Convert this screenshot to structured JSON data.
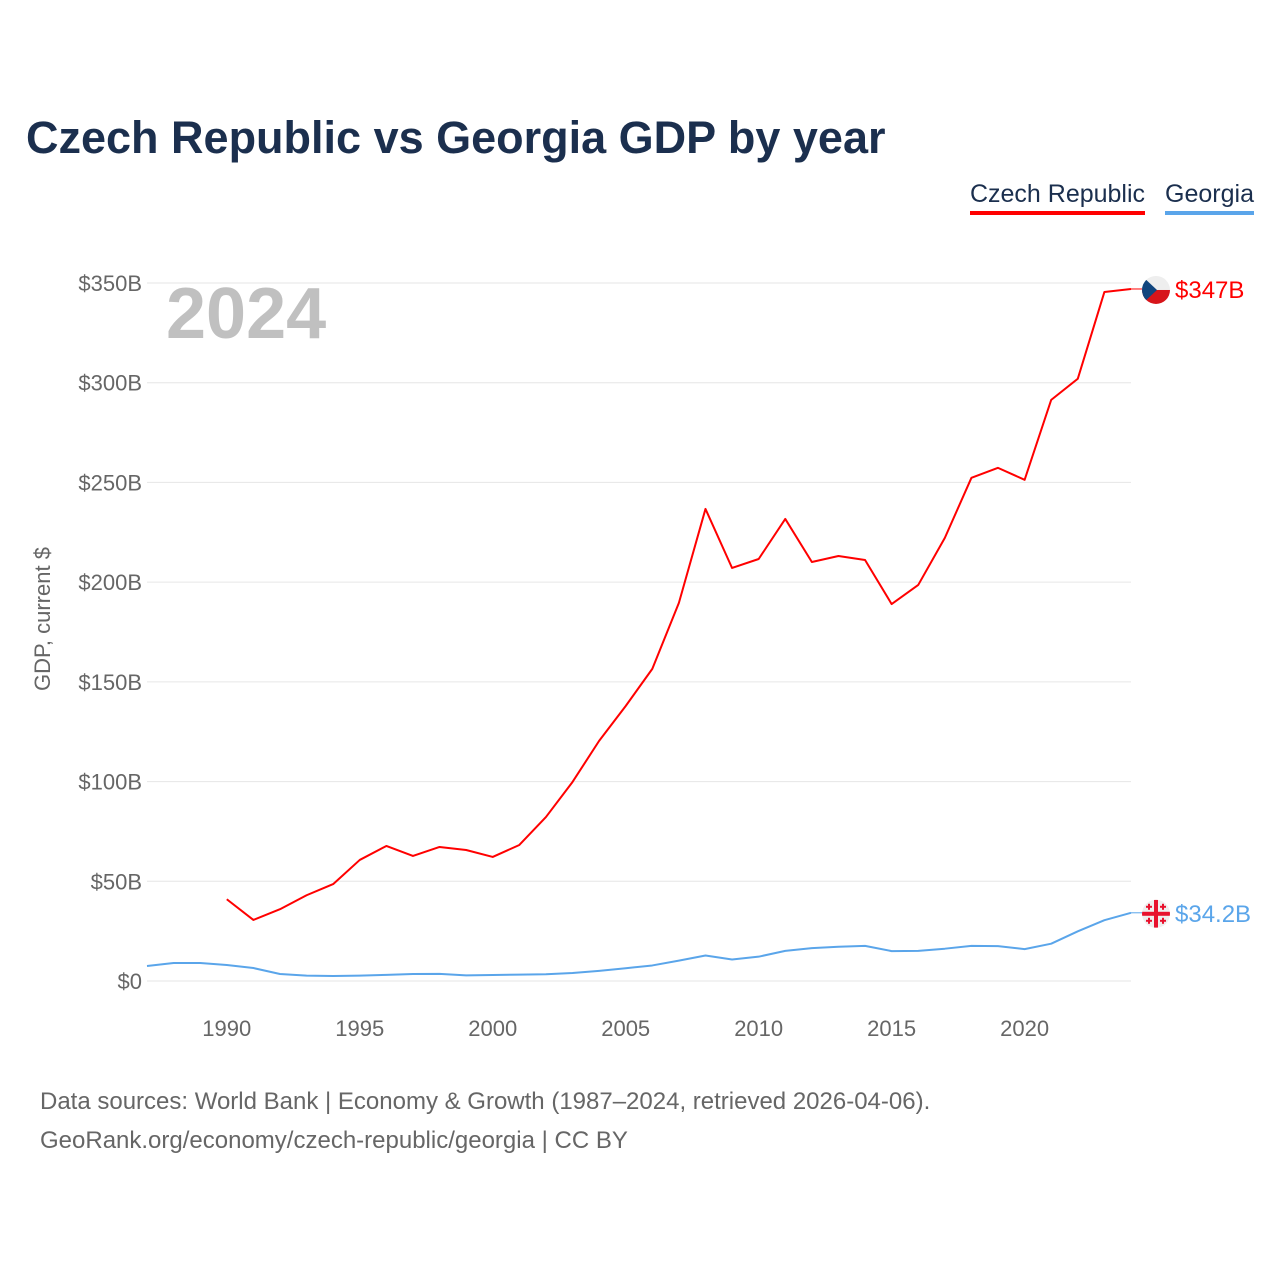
{
  "chart_data": {
    "type": "line",
    "title": "Czech Republic vs Georgia GDP by year",
    "xlabel": "",
    "ylabel": "GDP, current $",
    "xlim": [
      1987,
      2024
    ],
    "ylim": [
      0,
      350
    ],
    "x_ticks": [
      1990,
      1995,
      2000,
      2005,
      2010,
      2015,
      2020
    ],
    "y_ticks": [
      0,
      50,
      100,
      150,
      200,
      250,
      300,
      350
    ],
    "y_tick_labels": [
      "$0",
      "$50B",
      "$100B",
      "$150B",
      "$200B",
      "$250B",
      "$300B",
      "$350B"
    ],
    "grid": true,
    "legend_position": "top-right",
    "year_watermark": "2024",
    "series": [
      {
        "name": "Czech Republic",
        "color": "#ff0000",
        "end_label": "$347B",
        "flag": "czech-flag",
        "x": [
          1990,
          1991,
          1992,
          1993,
          1994,
          1995,
          1996,
          1997,
          1998,
          1999,
          2000,
          2001,
          2002,
          2003,
          2004,
          2005,
          2006,
          2007,
          2008,
          2009,
          2010,
          2011,
          2012,
          2013,
          2014,
          2015,
          2016,
          2017,
          2018,
          2019,
          2020,
          2021,
          2022,
          2023,
          2024
        ],
        "values": [
          41,
          30.6,
          36,
          43,
          48.6,
          60.7,
          67.7,
          62.7,
          67.2,
          65.7,
          62.2,
          68.2,
          82.2,
          99.8,
          120.4,
          137.9,
          156.5,
          189.6,
          236.7,
          207.1,
          211.6,
          231.7,
          210.1,
          213.1,
          211.1,
          189,
          198.6,
          222.2,
          252.3,
          257.3,
          251.3,
          291.4,
          302,
          345.5,
          347
        ]
      },
      {
        "name": "Georgia",
        "color": "#5aa5ea",
        "end_label": "$34.2B",
        "flag": "georgia-flag",
        "x": [
          1987,
          1988,
          1989,
          1990,
          1991,
          1992,
          1993,
          1994,
          1995,
          1996,
          1997,
          1998,
          1999,
          2000,
          2001,
          2002,
          2003,
          2004,
          2005,
          2006,
          2007,
          2008,
          2009,
          2010,
          2011,
          2012,
          2013,
          2014,
          2015,
          2016,
          2017,
          2018,
          2019,
          2020,
          2021,
          2022,
          2023,
          2024
        ],
        "values": [
          7.5,
          9,
          9,
          8,
          6.5,
          3.5,
          2.7,
          2.5,
          2.7,
          3.1,
          3.5,
          3.6,
          2.8,
          3,
          3.2,
          3.4,
          4,
          5.1,
          6.4,
          7.8,
          10.2,
          12.8,
          10.8,
          12.2,
          15.1,
          16.5,
          17.2,
          17.6,
          15,
          15.1,
          16.2,
          17.6,
          17.5,
          16,
          18.7,
          24.9,
          30.5,
          34.2
        ]
      }
    ]
  },
  "footer": {
    "line1": "Data sources: World Bank | Economy & Growth (1987–2024, retrieved 2026-04-06).",
    "line2": "GeoRank.org/economy/czech-republic/georgia | CC BY"
  }
}
